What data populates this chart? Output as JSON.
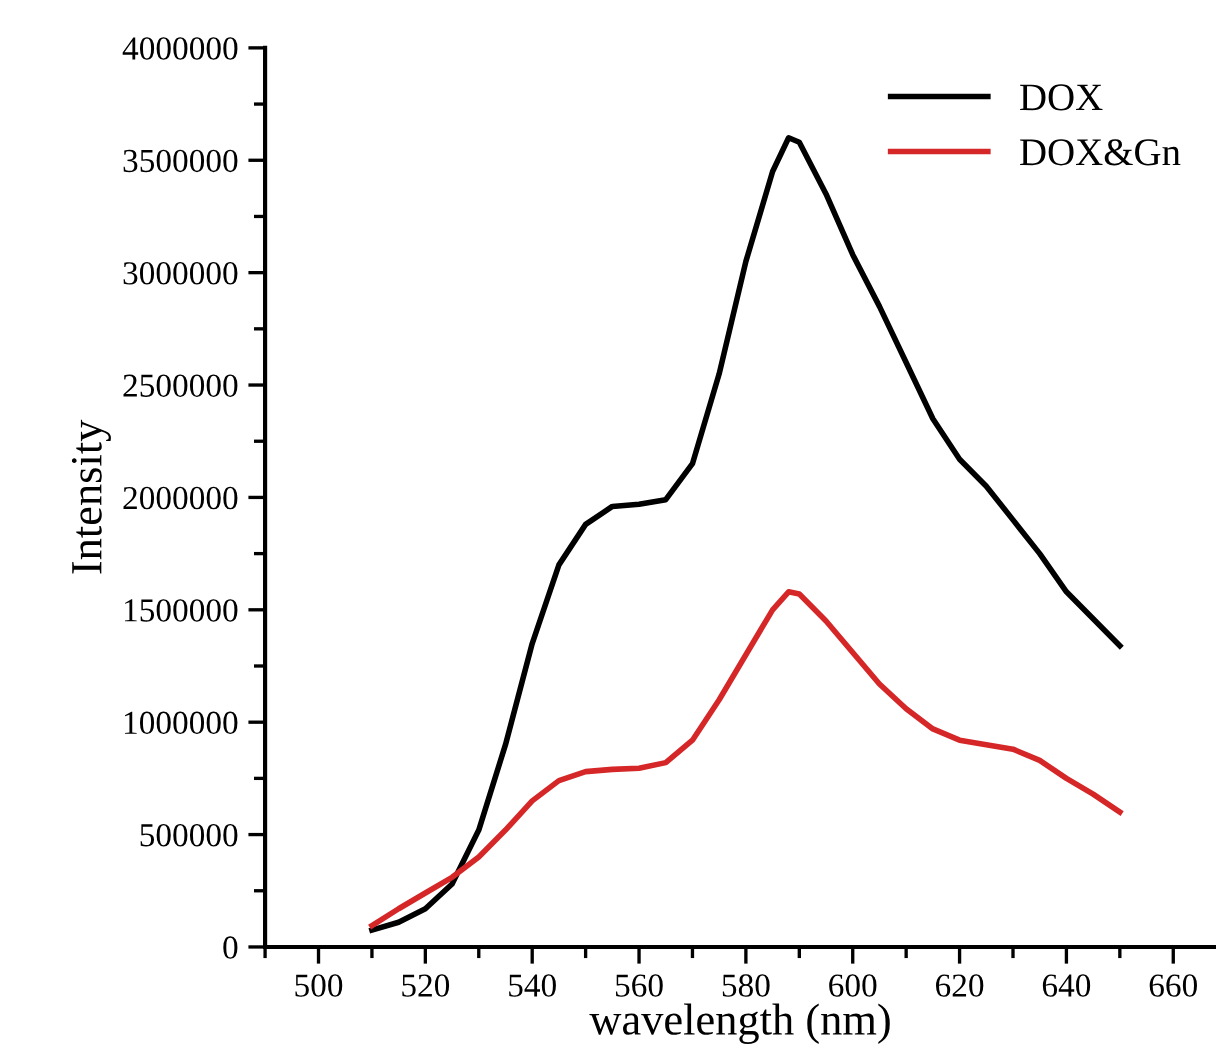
{
  "chart_data": {
    "type": "line",
    "xlabel": "wavelength (nm)",
    "ylabel": "Intensity",
    "xlim": [
      490,
      668
    ],
    "xticks": [
      500,
      520,
      540,
      560,
      580,
      600,
      620,
      640,
      660
    ],
    "ylim": [
      0,
      4000000
    ],
    "yticks": [
      0,
      500000,
      1000000,
      1500000,
      2000000,
      2500000,
      3000000,
      3500000,
      4000000
    ],
    "grid": false,
    "legend": "top right",
    "marker": "none",
    "line_style": "solid",
    "series": [
      {
        "name": "DOX",
        "color": "#000000",
        "x": [
          510,
          515,
          520,
          525,
          530,
          535,
          540,
          545,
          550,
          555,
          560,
          565,
          570,
          575,
          580,
          585,
          588,
          590,
          595,
          600,
          605,
          610,
          615,
          620,
          625,
          630,
          635,
          640,
          645,
          650
        ],
        "values": [
          75000,
          110000,
          170000,
          280000,
          520000,
          900000,
          1350000,
          1700000,
          1880000,
          1960000,
          1970000,
          1990000,
          2150000,
          2550000,
          3050000,
          3450000,
          3600000,
          3580000,
          3350000,
          3080000,
          2850000,
          2600000,
          2350000,
          2170000,
          2050000,
          1900000,
          1750000,
          1580000,
          1460000,
          1340000
        ]
      },
      {
        "name": "DOX&Gn",
        "color": "#d62728",
        "x": [
          510,
          515,
          520,
          525,
          530,
          535,
          540,
          545,
          550,
          555,
          560,
          565,
          570,
          575,
          580,
          585,
          588,
          590,
          595,
          600,
          605,
          610,
          615,
          620,
          625,
          630,
          635,
          640,
          645,
          650
        ],
        "values": [
          95000,
          170000,
          240000,
          310000,
          400000,
          520000,
          650000,
          740000,
          780000,
          790000,
          795000,
          820000,
          920000,
          1100000,
          1300000,
          1500000,
          1580000,
          1570000,
          1450000,
          1310000,
          1170000,
          1060000,
          970000,
          920000,
          900000,
          880000,
          830000,
          750000,
          680000,
          600000
        ]
      }
    ]
  }
}
